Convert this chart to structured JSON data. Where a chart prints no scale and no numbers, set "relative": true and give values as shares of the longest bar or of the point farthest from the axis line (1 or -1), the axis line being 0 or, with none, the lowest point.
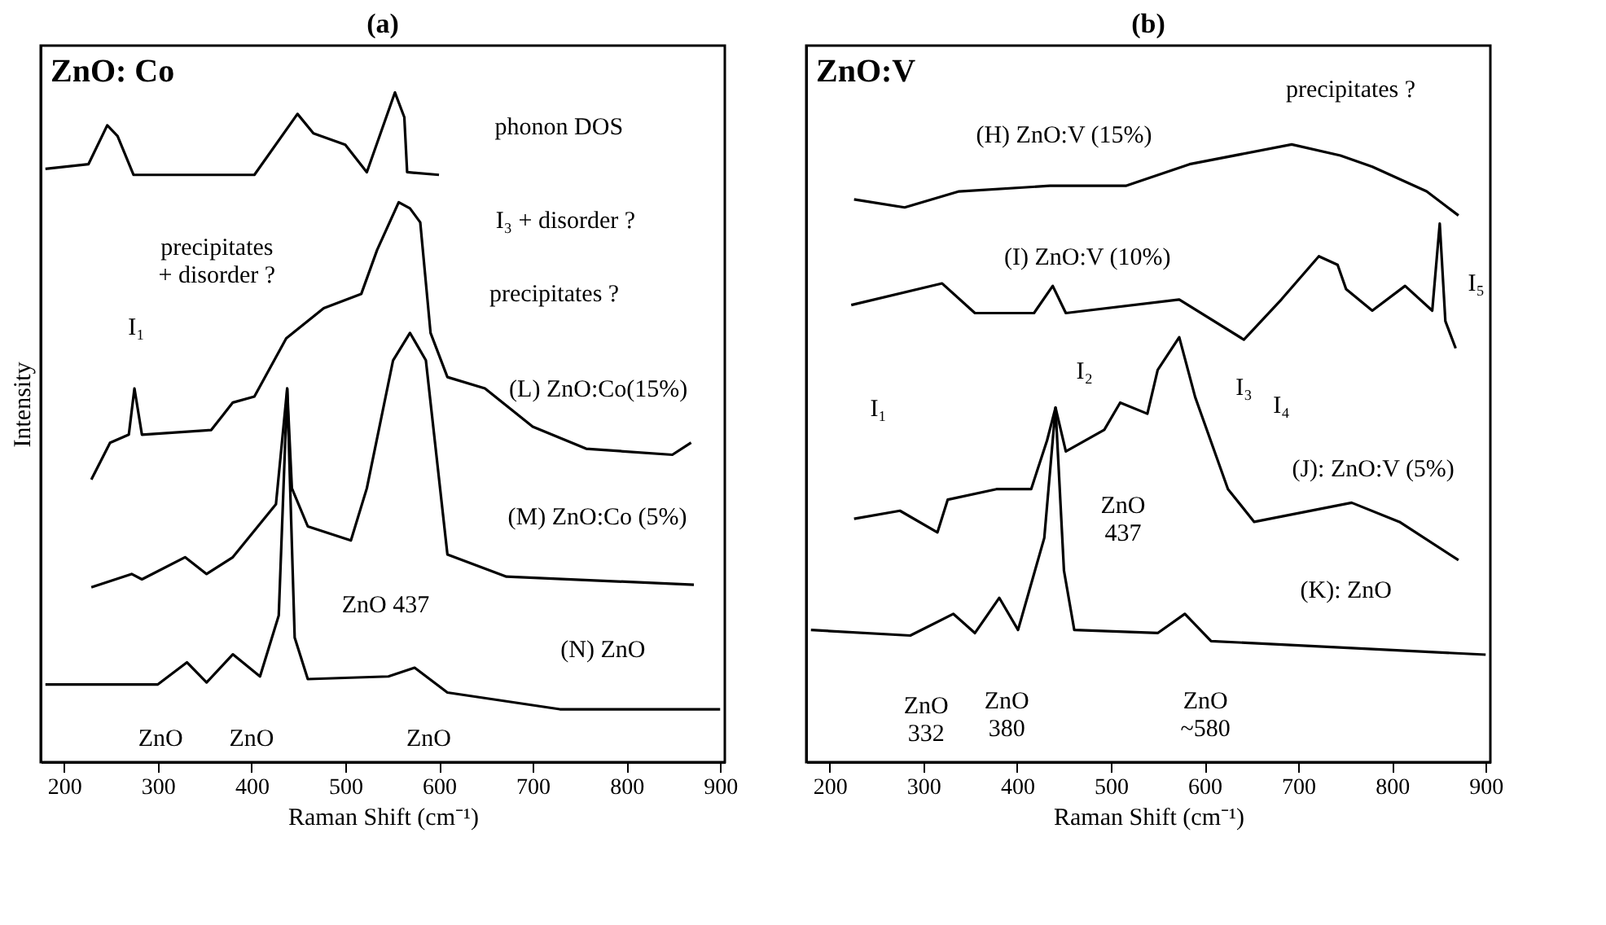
{
  "chart_data": [
    {
      "type": "line",
      "title": "(a)",
      "xlabel": "Raman Shift (cm⁻¹)",
      "ylabel": "Intensity",
      "relative": true,
      "tick_labels": "x",
      "legend": false,
      "grid": false,
      "line_style": "solid",
      "xlim": [
        175,
        905
      ],
      "xticks": [
        200,
        300,
        400,
        500,
        600,
        700,
        800,
        900
      ],
      "series": [
        {
          "name": "phonon DOS",
          "color": "#000000",
          "x": [
            180,
            226,
            246,
            257,
            274,
            403,
            449,
            466,
            500,
            523,
            553,
            563,
            566,
            600
          ],
          "values": [
            0.886,
            0.893,
            0.951,
            0.935,
            0.877,
            0.877,
            0.968,
            0.939,
            0.922,
            0.881,
            1.0,
            0.963,
            0.881,
            0.877
          ]
        },
        {
          "name": "(L) ZnO:Co(15%)",
          "color": "#000000",
          "x": [
            229,
            249,
            269,
            275,
            283,
            357,
            380,
            403,
            437,
            477,
            517,
            534,
            557,
            569,
            580,
            591,
            609,
            649,
            700,
            757,
            849,
            869
          ],
          "values": [
            0.422,
            0.477,
            0.489,
            0.558,
            0.489,
            0.496,
            0.537,
            0.546,
            0.633,
            0.678,
            0.699,
            0.765,
            0.836,
            0.827,
            0.806,
            0.641,
            0.575,
            0.558,
            0.501,
            0.468,
            0.459,
            0.477
          ]
        },
        {
          "name": "(M) ZnO:Co (5%)",
          "color": "#000000",
          "x": [
            229,
            272,
            283,
            329,
            352,
            380,
            426,
            438,
            443,
            460,
            506,
            523,
            551,
            569,
            586,
            609,
            672,
            872
          ],
          "values": [
            0.261,
            0.281,
            0.273,
            0.306,
            0.281,
            0.306,
            0.385,
            0.558,
            0.409,
            0.352,
            0.331,
            0.409,
            0.6,
            0.641,
            0.6,
            0.31,
            0.277,
            0.265
          ]
        },
        {
          "name": "(N) ZnO",
          "color": "#000000",
          "x": [
            180,
            300,
            331,
            352,
            380,
            409,
            429,
            438,
            446,
            460,
            546,
            574,
            609,
            729,
            900
          ],
          "values": [
            0.116,
            0.116,
            0.149,
            0.119,
            0.161,
            0.128,
            0.219,
            0.558,
            0.186,
            0.124,
            0.128,
            0.141,
            0.104,
            0.079,
            0.079
          ]
        }
      ],
      "annotations": [
        "ZnO: Co",
        "precipitates\n+ disorder ?",
        "I₁",
        "I₃ + disorder ?",
        "precipitates ?",
        "ZnO  437",
        "ZnO",
        "ZnO",
        "ZnO"
      ]
    },
    {
      "type": "line",
      "title": "(b)",
      "xlabel": "Raman Shift (cm⁻¹)",
      "relative": true,
      "tick_labels": "x",
      "legend": false,
      "grid": false,
      "line_style": "solid",
      "xlim": [
        175,
        905
      ],
      "xticks": [
        200,
        300,
        400,
        500,
        600,
        700,
        800,
        900
      ],
      "series": [
        {
          "name": "(H) ZnO:V (15%)",
          "color": "#000000",
          "x": [
            226,
            280,
            338,
            435,
            516,
            584,
            693,
            745,
            779,
            837,
            871
          ],
          "values": [
            0.911,
            0.898,
            0.924,
            0.933,
            0.933,
            0.968,
            1.0,
            0.982,
            0.964,
            0.924,
            0.885
          ]
        },
        {
          "name": "(I)  ZnO:V (10%)",
          "color": "#000000",
          "x": [
            223,
            320,
            355,
            418,
            438,
            452,
            573,
            642,
            682,
            722,
            742,
            751,
            779,
            814,
            843,
            851,
            857,
            868
          ],
          "values": [
            0.74,
            0.775,
            0.727,
            0.727,
            0.771,
            0.727,
            0.749,
            0.684,
            0.749,
            0.819,
            0.805,
            0.766,
            0.731,
            0.771,
            0.731,
            0.872,
            0.714,
            0.67
          ]
        },
        {
          "name": "(J): ZnO:V (5%)",
          "color": "#000000",
          "x": [
            226,
            275,
            315,
            326,
            378,
            415,
            432,
            441,
            452,
            493,
            510,
            539,
            550,
            573,
            590,
            625,
            653,
            757,
            808,
            871
          ],
          "values": [
            0.394,
            0.407,
            0.372,
            0.425,
            0.442,
            0.442,
            0.521,
            0.574,
            0.503,
            0.538,
            0.582,
            0.564,
            0.635,
            0.688,
            0.591,
            0.442,
            0.389,
            0.42,
            0.389,
            0.327
          ]
        },
        {
          "name": "(K): ZnO",
          "color": "#000000",
          "x": [
            180,
            286,
            332,
            355,
            381,
            401,
            429,
            441,
            450,
            461,
            550,
            579,
            607,
            779,
            900
          ],
          "values": [
            0.214,
            0.205,
            0.24,
            0.209,
            0.266,
            0.214,
            0.363,
            0.574,
            0.31,
            0.214,
            0.209,
            0.24,
            0.196,
            0.183,
            0.174
          ]
        }
      ],
      "annotations": [
        "ZnO:V",
        "precipitates ?",
        "I₁",
        "I₂",
        "I₃",
        "I₄",
        "I₅",
        "ZnO\n437",
        "ZnO\n332",
        "ZnO\n380",
        "ZnO\n~580"
      ]
    }
  ]
}
